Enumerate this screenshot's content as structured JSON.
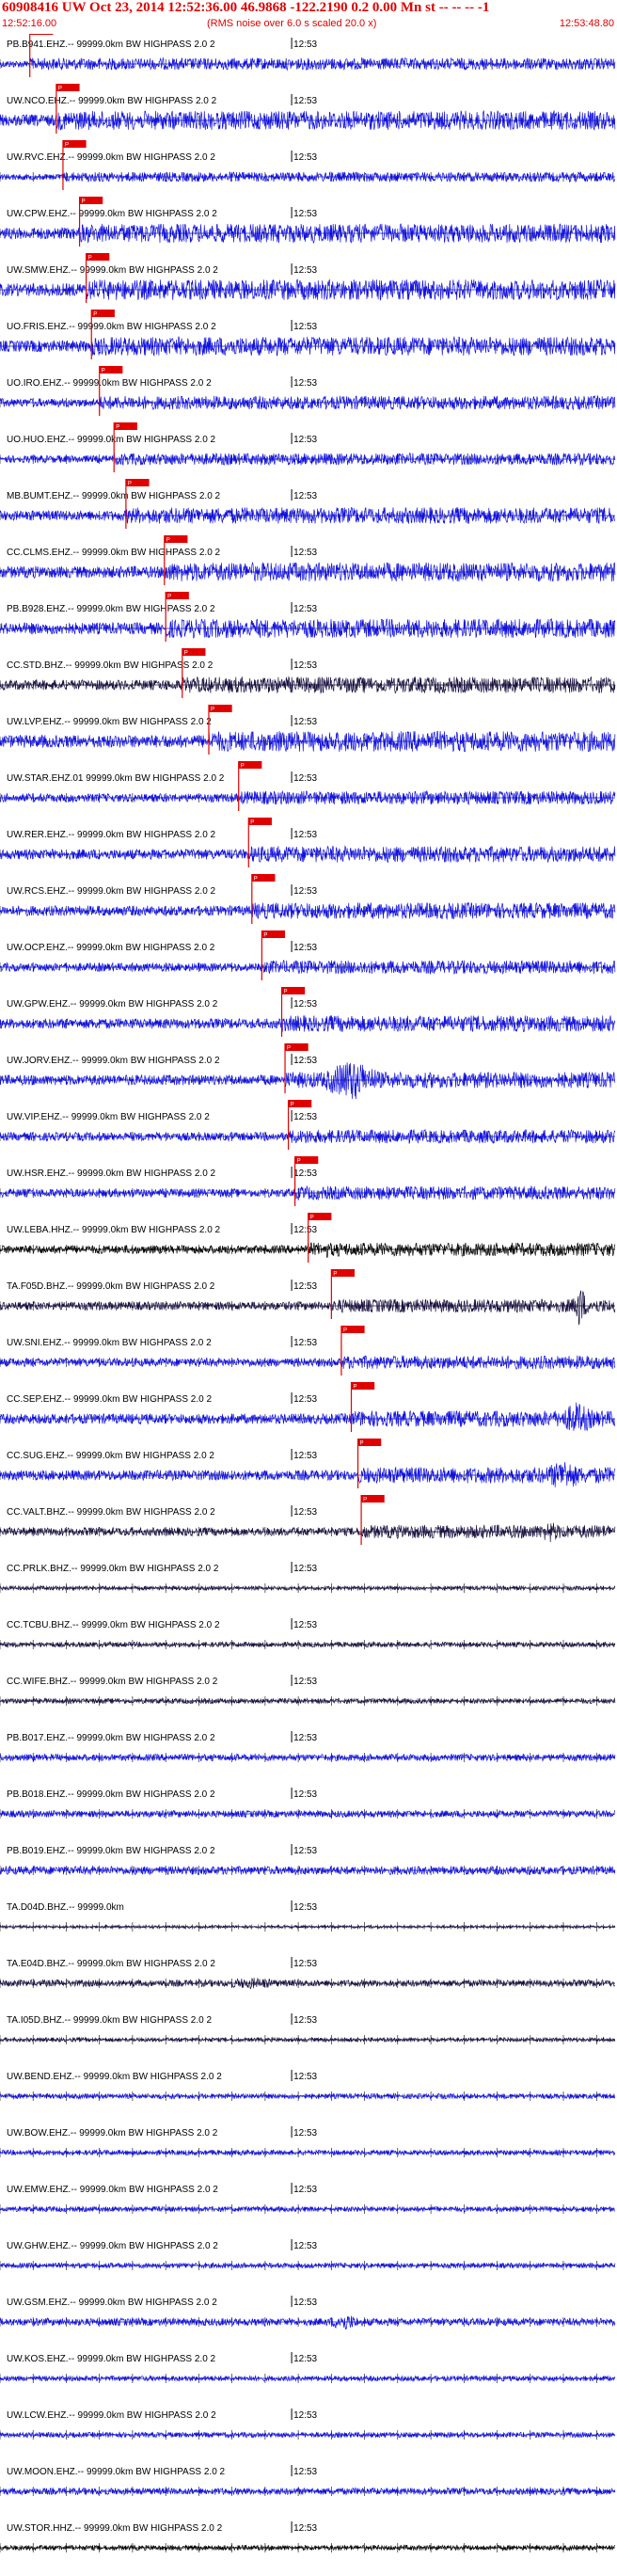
{
  "header": {
    "title": "60908416 UW Oct 23, 2014 12:52:36.00   46.9868 -122.2190  0.2 0.00 Mn st -- -- --   -1",
    "start_time": "12:52:16.00",
    "end_time": "12:53:48.80",
    "noise_note": "(RMS noise over 6.0 s scaled 20.0 x)"
  },
  "colors": {
    "trace_blue": "#1010e0",
    "trace_dark": "#1a1040",
    "trace_black": "#000000",
    "pick_red": "#e00000",
    "tick_black": "#000000"
  },
  "chart_data": {
    "type": "seismogram",
    "time_start": "12:52:16.00",
    "time_end": "12:53:48.80",
    "minute_mark": "12:53",
    "minute_mark_seconds": 44.0,
    "pick_tick_label": "P",
    "pick_duration_seconds": 3.5,
    "traces": [
      {
        "label": "PB.B941.EHZ.-- 99999.0km BW  HIGHPASS  2.0  2",
        "color": "blue",
        "pick_seconds": 4.5,
        "amp": 0.22,
        "burst": null
      },
      {
        "label": "UW.NCO.EHZ.-- 99999.0km BW  HIGHPASS  2.0  2",
        "color": "blue",
        "pick_seconds": 8.5,
        "amp": 0.35,
        "burst": null
      },
      {
        "label": "UW.RVC.EHZ.-- 99999.0km BW  HIGHPASS  2.0  2",
        "color": "blue",
        "pick_seconds": 9.5,
        "amp": 0.18,
        "burst": null
      },
      {
        "label": "UW.CPW.EHZ.-- 99999.0km BW  HIGHPASS  2.0  2",
        "color": "blue",
        "pick_seconds": 12.0,
        "amp": 0.35,
        "burst": null
      },
      {
        "label": "UW.SMW.EHZ.-- 99999.0km BW  HIGHPASS  2.0  2",
        "color": "blue",
        "pick_seconds": 13.0,
        "amp": 0.38,
        "burst": null
      },
      {
        "label": "UO.FRIS.EHZ.-- 99999.0km BW  HIGHPASS  2.0  2",
        "color": "blue",
        "pick_seconds": 13.8,
        "amp": 0.35,
        "burst": null
      },
      {
        "label": "UO.IRO.EHZ.-- 99999.0km BW  HIGHPASS  2.0  2",
        "color": "blue",
        "pick_seconds": 15.0,
        "amp": 0.25,
        "burst": null
      },
      {
        "label": "UO.HUO.EHZ.-- 99999.0km BW  HIGHPASS  2.0  2",
        "color": "blue",
        "pick_seconds": 17.2,
        "amp": 0.22,
        "burst": null
      },
      {
        "label": "MB.BUMT.EHZ.-- 99999.0km BW  HIGHPASS  2.0  2",
        "color": "blue",
        "pick_seconds": 19.0,
        "amp": 0.3,
        "burst": null
      },
      {
        "label": "CC.CLMS.EHZ.-- 99999.0km BW  HIGHPASS  2.0  2",
        "color": "blue",
        "pick_seconds": 24.8,
        "amp": 0.35,
        "burst": null
      },
      {
        "label": "PB.B928.EHZ.-- 99999.0km BW  HIGHPASS  2.0  2",
        "color": "blue",
        "pick_seconds": 25.0,
        "amp": 0.35,
        "burst": null
      },
      {
        "label": "CC.STD.BHZ.-- 99999.0km BW  HIGHPASS  2.0  2",
        "color": "dark",
        "pick_seconds": 27.5,
        "amp": 0.3,
        "burst": null
      },
      {
        "label": "UW.LVP.EHZ.-- 99999.0km BW  HIGHPASS  2.0  2",
        "color": "blue",
        "pick_seconds": 31.5,
        "amp": 0.38,
        "burst": null
      },
      {
        "label": "UW.STAR.EHZ.01 99999.0km BW  HIGHPASS  2.0  2",
        "color": "blue",
        "pick_seconds": 36.0,
        "amp": 0.25,
        "burst": null
      },
      {
        "label": "UW.RER.EHZ.-- 99999.0km BW  HIGHPASS  2.0  2",
        "color": "blue",
        "pick_seconds": 37.5,
        "amp": 0.3,
        "burst": null
      },
      {
        "label": "UW.RCS.EHZ.-- 99999.0km BW  HIGHPASS  2.0  2",
        "color": "blue",
        "pick_seconds": 38.0,
        "amp": 0.3,
        "burst": null
      },
      {
        "label": "UW.OCP.EHZ.-- 99999.0km BW  HIGHPASS  2.0  2",
        "color": "blue",
        "pick_seconds": 39.5,
        "amp": 0.25,
        "burst": null
      },
      {
        "label": "UW.GPW.EHZ.-- 99999.0km BW  HIGHPASS  2.0  2",
        "color": "blue",
        "pick_seconds": 42.5,
        "amp": 0.3,
        "burst": null
      },
      {
        "label": "UW.JORV.EHZ.-- 99999.0km BW  HIGHPASS  2.0  2",
        "color": "blue",
        "pick_seconds": 43.0,
        "amp": 0.3,
        "burst": {
          "start": 46,
          "end": 60,
          "peak": 1.3
        }
      },
      {
        "label": "UW.VIP.EHZ.-- 99999.0km BW  HIGHPASS  2.0  2",
        "color": "blue",
        "pick_seconds": 43.5,
        "amp": 0.25,
        "burst": {
          "start": 44,
          "end": 49,
          "peak": 0.5
        }
      },
      {
        "label": "UW.HSR.EHZ.-- 99999.0km BW  HIGHPASS  2.0  2",
        "color": "blue",
        "pick_seconds": 44.5,
        "amp": 0.25,
        "burst": {
          "start": 44.5,
          "end": 48,
          "peak": 0.45
        }
      },
      {
        "label": "UW.LEBA.HHZ.-- 99999.0km BW  HIGHPASS  2.0  2",
        "color": "black",
        "pick_seconds": 46.5,
        "amp": 0.25,
        "burst": {
          "start": 48,
          "end": 51,
          "peak": 0.55
        }
      },
      {
        "label": "TA.F05D.BHZ.-- 99999.0km BW  HIGHPASS  2.0  2",
        "color": "dark",
        "pick_seconds": 50.0,
        "amp": 0.25,
        "burst": {
          "start": 86,
          "end": 89,
          "peak": 1.4
        }
      },
      {
        "label": "UW.SNI.EHZ.-- 99999.0km BW  HIGHPASS  2.0  2",
        "color": "blue",
        "pick_seconds": 51.5,
        "amp": 0.25,
        "burst": null
      },
      {
        "label": "CC.SEP.EHZ.-- 99999.0km BW  HIGHPASS  2.0  2",
        "color": "blue",
        "pick_seconds": 53.0,
        "amp": 0.3,
        "burst": {
          "start": 82,
          "end": 92,
          "peak": 1.0
        }
      },
      {
        "label": "CC.SUG.EHZ.-- 99999.0km BW  HIGHPASS  2.0  2",
        "color": "blue",
        "pick_seconds": 54.0,
        "amp": 0.3,
        "burst": {
          "start": 80,
          "end": 90,
          "peak": 1.0
        }
      },
      {
        "label": "CC.VALT.BHZ.-- 99999.0km BW  HIGHPASS  2.0  2",
        "color": "dark",
        "pick_seconds": 54.5,
        "amp": 0.25,
        "burst": {
          "start": 80,
          "end": 86,
          "peak": 0.7
        }
      },
      {
        "label": "CC.PRLK.BHZ.-- 99999.0km BW  HIGHPASS  2.0  2",
        "color": "dark",
        "pick_seconds": null,
        "amp": 0.12,
        "burst": null
      },
      {
        "label": "CC.TCBU.BHZ.-- 99999.0km BW  HIGHPASS  2.0  2",
        "color": "dark",
        "pick_seconds": null,
        "amp": 0.15,
        "burst": null
      },
      {
        "label": "CC.WIFE.BHZ.-- 99999.0km BW  HIGHPASS  2.0  2",
        "color": "dark",
        "pick_seconds": null,
        "amp": 0.15,
        "burst": null
      },
      {
        "label": "PB.B017.EHZ.-- 99999.0km BW  HIGHPASS  2.0  2",
        "color": "blue",
        "pick_seconds": null,
        "amp": 0.2,
        "burst": null
      },
      {
        "label": "PB.B018.EHZ.-- 99999.0km BW  HIGHPASS  2.0  2",
        "color": "blue",
        "pick_seconds": null,
        "amp": 0.2,
        "burst": null
      },
      {
        "label": "PB.B019.EHZ.-- 99999.0km BW  HIGHPASS  2.0  2",
        "color": "blue",
        "pick_seconds": null,
        "amp": 0.25,
        "burst": null
      },
      {
        "label": "TA.D04D.BHZ.-- 99999.0km",
        "color": "dark",
        "pick_seconds": null,
        "amp": 0.08,
        "burst": null
      },
      {
        "label": "TA.E04D.BHZ.-- 99999.0km BW  HIGHPASS  2.0  2",
        "color": "dark",
        "pick_seconds": null,
        "amp": 0.2,
        "burst": {
          "start": 28,
          "end": 48,
          "peak": 0.35
        }
      },
      {
        "label": "TA.I05D.BHZ.-- 99999.0km BW  HIGHPASS  2.0  2",
        "color": "dark",
        "pick_seconds": null,
        "amp": 0.12,
        "burst": null
      },
      {
        "label": "UW.BEND.EHZ.-- 99999.0km BW  HIGHPASS  2.0  2",
        "color": "blue",
        "pick_seconds": null,
        "amp": 0.15,
        "burst": null
      },
      {
        "label": "UW.BOW.EHZ.-- 99999.0km BW  HIGHPASS  2.0  2",
        "color": "blue",
        "pick_seconds": null,
        "amp": 0.15,
        "burst": null
      },
      {
        "label": "UW.EMW.EHZ.-- 99999.0km BW  HIGHPASS  2.0  2",
        "color": "blue",
        "pick_seconds": null,
        "amp": 0.15,
        "burst": null
      },
      {
        "label": "UW.GHW.EHZ.-- 99999.0km BW  HIGHPASS  2.0  2",
        "color": "blue",
        "pick_seconds": null,
        "amp": 0.15,
        "burst": null
      },
      {
        "label": "UW.GSM.EHZ.-- 99999.0km BW  HIGHPASS  2.0  2",
        "color": "blue",
        "pick_seconds": null,
        "amp": 0.22,
        "burst": {
          "start": 48,
          "end": 56,
          "peak": 0.55
        }
      },
      {
        "label": "UW.KOS.EHZ.-- 99999.0km BW  HIGHPASS  2.0  2",
        "color": "blue",
        "pick_seconds": null,
        "amp": 0.15,
        "burst": null
      },
      {
        "label": "UW.LCW.EHZ.-- 99999.0km BW  HIGHPASS  2.0  2",
        "color": "blue",
        "pick_seconds": null,
        "amp": 0.15,
        "burst": null
      },
      {
        "label": "UW.MOON.EHZ.-- 99999.0km BW  HIGHPASS  2.0  2",
        "color": "blue",
        "pick_seconds": null,
        "amp": 0.2,
        "burst": null
      },
      {
        "label": "UW.STOR.HHZ.-- 99999.0km BW  HIGHPASS  2.0  2",
        "color": "black",
        "pick_seconds": null,
        "amp": 0.15,
        "burst": null
      }
    ]
  }
}
